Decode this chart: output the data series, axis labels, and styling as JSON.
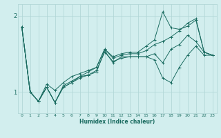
{
  "title": "",
  "xlabel": "Humidex (Indice chaleur)",
  "ylabel": "",
  "background_color": "#d2eeee",
  "grid_color": "#aed4d4",
  "line_color": "#1a6b60",
  "xlim": [
    -0.5,
    23.5
  ],
  "ylim": [
    0.72,
    2.15
  ],
  "xticks": [
    0,
    1,
    2,
    3,
    4,
    5,
    6,
    7,
    8,
    9,
    10,
    11,
    12,
    13,
    14,
    15,
    16,
    17,
    18,
    19,
    20,
    21,
    22,
    23
  ],
  "yticks": [
    1,
    2
  ],
  "series": [
    [
      1.85,
      1.0,
      0.875,
      1.06,
      0.86,
      1.06,
      1.12,
      1.18,
      1.22,
      1.26,
      1.54,
      1.38,
      1.46,
      1.46,
      1.46,
      1.46,
      1.42,
      1.18,
      1.12,
      1.32,
      1.48,
      1.6,
      1.48,
      1.48
    ],
    [
      1.85,
      1.0,
      0.875,
      1.06,
      0.86,
      1.06,
      1.12,
      1.2,
      1.22,
      1.28,
      1.52,
      1.4,
      1.44,
      1.46,
      1.46,
      1.46,
      1.5,
      1.38,
      1.56,
      1.62,
      1.74,
      1.66,
      1.52,
      1.48
    ],
    [
      1.85,
      1.0,
      0.875,
      1.1,
      1.02,
      1.12,
      1.2,
      1.24,
      1.28,
      1.32,
      1.56,
      1.46,
      1.5,
      1.52,
      1.52,
      1.6,
      1.68,
      2.05,
      1.84,
      1.82,
      1.86,
      1.94,
      1.52,
      1.48
    ],
    [
      1.85,
      1.0,
      0.875,
      1.06,
      0.86,
      1.08,
      1.14,
      1.2,
      1.26,
      1.32,
      1.56,
      1.44,
      1.48,
      1.5,
      1.5,
      1.54,
      1.62,
      1.66,
      1.72,
      1.8,
      1.9,
      1.96,
      1.52,
      1.48
    ]
  ]
}
